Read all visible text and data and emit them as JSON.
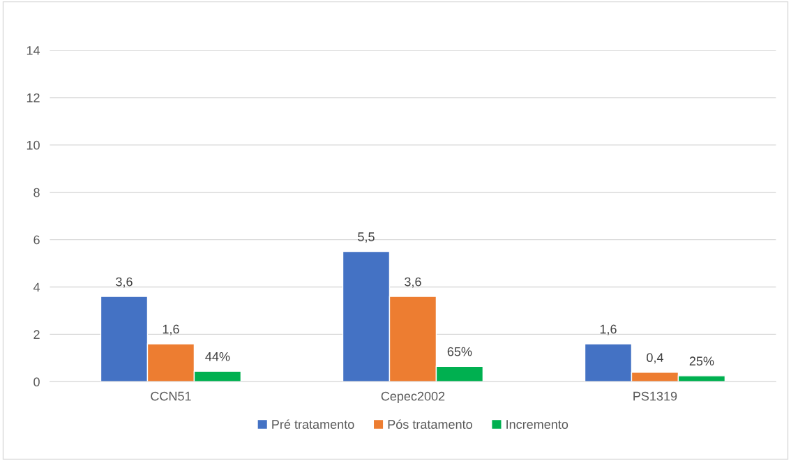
{
  "chart_data": {
    "type": "bar",
    "categories": [
      "CCN51",
      "Cepec2002",
      "PS1319"
    ],
    "series": [
      {
        "name": "Pré tratamento",
        "color": "#4472c4",
        "values": [
          3.6,
          5.5,
          1.6
        ],
        "value_labels": [
          "3,6",
          "5,5",
          "1,6"
        ]
      },
      {
        "name": "Pós tratamento",
        "color": "#ed7d31",
        "values": [
          1.6,
          3.6,
          0.4
        ],
        "value_labels": [
          "1,6",
          "3,6",
          "0,4"
        ]
      },
      {
        "name": "Incremento",
        "color": "#00b050",
        "values": [
          0.44,
          0.65,
          0.25
        ],
        "value_labels": [
          "44%",
          "65%",
          "25%"
        ]
      }
    ],
    "ylim": [
      0,
      14
    ],
    "yticks": [
      0,
      2,
      4,
      6,
      8,
      10,
      12,
      14
    ],
    "grid": "y",
    "legend": "bottom"
  }
}
